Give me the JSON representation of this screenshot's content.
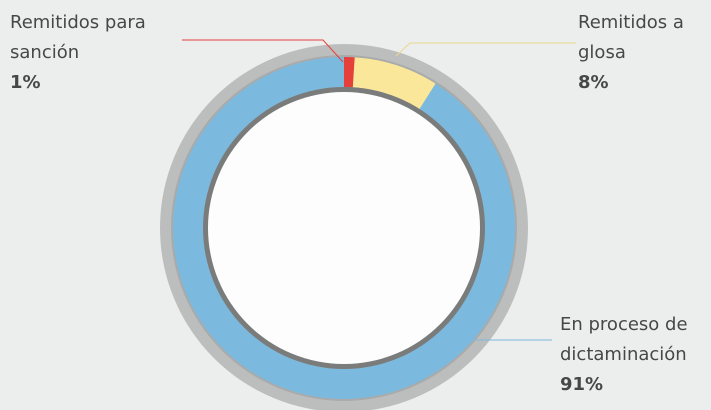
{
  "chart_data": {
    "type": "donut",
    "categories": [
      "Remitidos para sanción",
      "Remitidos a glosa",
      "En proceso de dictaminación"
    ],
    "values": [
      1,
      8,
      91
    ],
    "value_labels": [
      "1%",
      "8%",
      "91%"
    ],
    "colors": [
      "#e5403a",
      "#fbe79a",
      "#7cb9de"
    ]
  }
}
